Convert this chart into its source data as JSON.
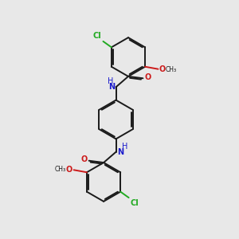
{
  "bg_color": "#e8e8e8",
  "bond_color": "#1a1a1a",
  "N_color": "#1a1acc",
  "O_color": "#cc1a1a",
  "Cl_color": "#22aa22",
  "bond_width": 1.4,
  "dbo": 0.055,
  "r": 0.82,
  "xlim": [
    0,
    10
  ],
  "ylim": [
    0,
    10
  ]
}
